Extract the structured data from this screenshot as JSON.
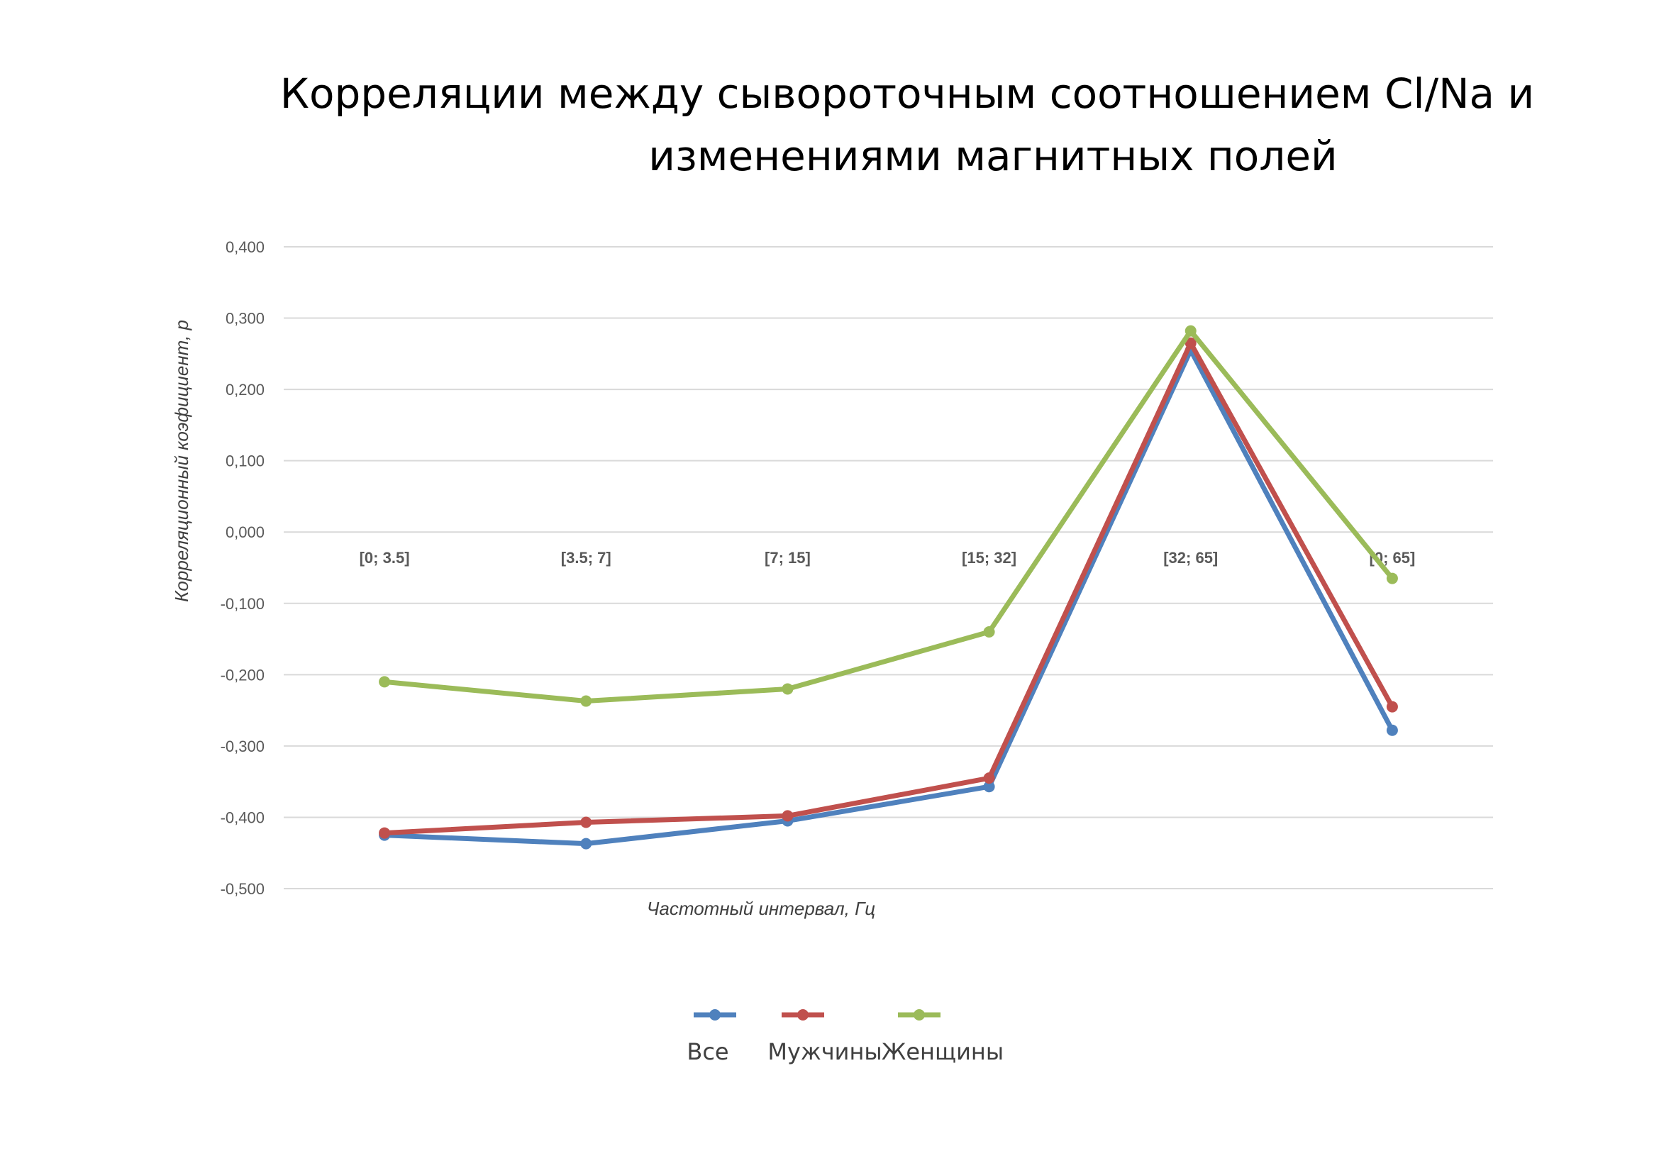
{
  "chart_data": {
    "type": "line",
    "title_lines": [
      "Корреляции между сывороточным соотношением Cl/Na и",
      "изменениями магнитных полей"
    ],
    "xlabel": "Частотный интервал, Гц",
    "ylabel": "Корреляционный коэфициент, p",
    "ylim": [
      -0.5,
      0.4
    ],
    "y_ticks": [
      "0,400",
      "0,300",
      "0,200",
      "0,100",
      "0,000",
      "-0,100",
      "-0,200",
      "-0,300",
      "-0,400",
      "-0,500"
    ],
    "y_tick_values": [
      0.4,
      0.3,
      0.2,
      0.1,
      0.0,
      -0.1,
      -0.2,
      -0.3,
      -0.4,
      -0.5
    ],
    "categories": [
      "[0; 3.5]",
      "[3.5; 7]",
      "[7; 15]",
      "[15; 32]",
      "[32; 65]",
      "[0; 65]"
    ],
    "grid": true,
    "legend_position": "bottom",
    "series": [
      {
        "name": "Все",
        "color": "#4F81BD",
        "values": [
          -0.425,
          -0.437,
          -0.405,
          -0.357,
          0.255,
          -0.278
        ]
      },
      {
        "name": "Мужчины",
        "color": "#C0504D",
        "values": [
          -0.422,
          -0.407,
          -0.398,
          -0.345,
          0.265,
          -0.245
        ]
      },
      {
        "name": "Женщины",
        "color": "#9BBB59",
        "values": [
          -0.21,
          -0.237,
          -0.22,
          -0.14,
          0.282,
          -0.065
        ]
      }
    ]
  }
}
